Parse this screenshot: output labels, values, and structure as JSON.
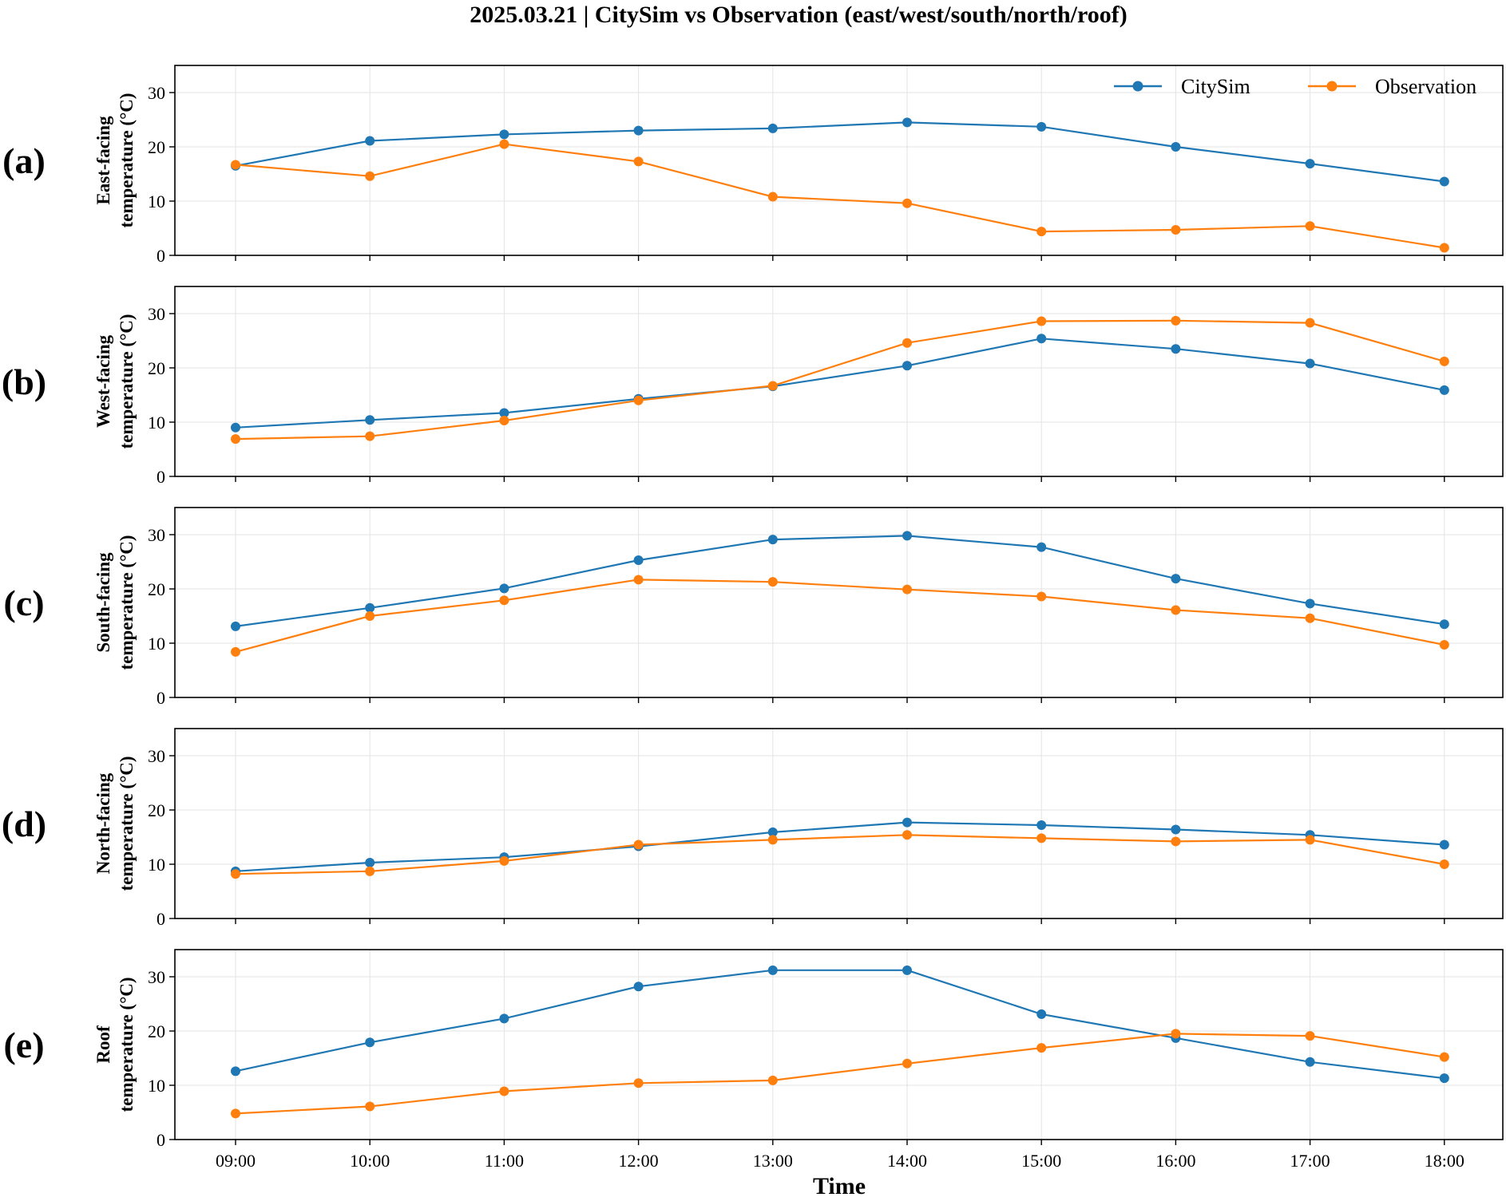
{
  "title": "2025.03.21 | CitySim vs Observation (east/west/south/north/roof)",
  "colors": {
    "citysim": "#1f77b4",
    "observation": "#ff7f0e"
  },
  "chart_data": {
    "type": "line",
    "xlabel": "Time",
    "categories": [
      "09:00",
      "10:00",
      "11:00",
      "12:00",
      "13:00",
      "14:00",
      "15:00",
      "16:00",
      "17:00",
      "18:00"
    ],
    "ylim": [
      0,
      35
    ],
    "yticks": [
      0,
      10,
      20,
      30
    ],
    "legend": {
      "position": "top-right",
      "entries": [
        "CitySim",
        "Observation"
      ]
    },
    "panels": [
      {
        "label": "(a)",
        "ylabel_line1": "East-facing",
        "ylabel_line2": "temperature (°C)",
        "series": [
          {
            "name": "CitySim",
            "values": [
              16.5,
              21.1,
              22.3,
              23.0,
              23.4,
              24.5,
              23.7,
              20.0,
              16.9,
              13.6
            ]
          },
          {
            "name": "Observation",
            "values": [
              16.7,
              14.6,
              20.5,
              17.3,
              10.8,
              9.6,
              4.4,
              4.7,
              5.4,
              1.4
            ]
          }
        ]
      },
      {
        "label": "(b)",
        "ylabel_line1": "West-facing",
        "ylabel_line2": "temperature (°C)",
        "series": [
          {
            "name": "CitySim",
            "values": [
              9.0,
              10.4,
              11.7,
              14.3,
              16.6,
              20.4,
              25.4,
              23.5,
              20.8,
              15.9
            ]
          },
          {
            "name": "Observation",
            "values": [
              6.9,
              7.4,
              10.3,
              14.0,
              16.7,
              24.6,
              28.6,
              28.7,
              28.3,
              21.2
            ]
          }
        ]
      },
      {
        "label": "(c)",
        "ylabel_line1": "South-facing",
        "ylabel_line2": "temperature (°C)",
        "series": [
          {
            "name": "CitySim",
            "values": [
              13.1,
              16.5,
              20.1,
              25.3,
              29.1,
              29.8,
              27.7,
              21.9,
              17.3,
              13.5
            ]
          },
          {
            "name": "Observation",
            "values": [
              8.4,
              15.0,
              17.9,
              21.7,
              21.3,
              19.9,
              18.6,
              16.1,
              14.6,
              9.7
            ]
          }
        ]
      },
      {
        "label": "(d)",
        "ylabel_line1": "North-facing",
        "ylabel_line2": "temperature (°C)",
        "series": [
          {
            "name": "CitySim",
            "values": [
              8.7,
              10.3,
              11.3,
              13.3,
              15.9,
              17.7,
              17.2,
              16.4,
              15.4,
              13.6
            ]
          },
          {
            "name": "Observation",
            "values": [
              8.2,
              8.7,
              10.6,
              13.6,
              14.5,
              15.4,
              14.8,
              14.2,
              14.5,
              10.0
            ]
          }
        ]
      },
      {
        "label": "(e)",
        "ylabel_line1": "Roof",
        "ylabel_line2": "temperature (°C)",
        "series": [
          {
            "name": "CitySim",
            "values": [
              12.6,
              17.9,
              22.3,
              28.2,
              31.2,
              31.2,
              23.1,
              18.7,
              14.3,
              11.3
            ]
          },
          {
            "name": "Observation",
            "values": [
              4.8,
              6.1,
              8.9,
              10.4,
              10.9,
              14.0,
              16.9,
              19.5,
              19.1,
              15.2
            ]
          }
        ]
      }
    ]
  }
}
